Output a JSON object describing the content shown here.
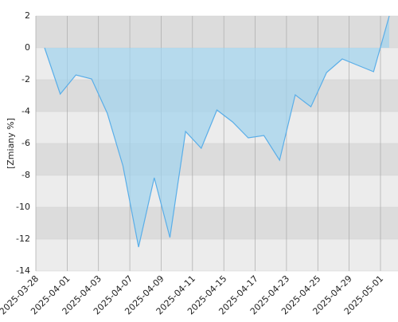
{
  "chart_data": {
    "type": "area",
    "y_label": "[Zmiany %]",
    "categories": [
      "2025-03-28",
      null,
      "2025-04-01",
      null,
      "2025-04-03",
      null,
      "2025-04-07",
      null,
      "2025-04-09",
      null,
      "2025-04-11",
      null,
      "2025-04-15",
      null,
      "2025-04-17",
      null,
      "2025-04-23",
      null,
      "2025-04-25",
      null,
      "2025-04-29",
      null,
      "2025-05-01"
    ],
    "values": [
      0,
      -2.9,
      -1.7,
      -1.95,
      -4.1,
      -7.4,
      -12.5,
      -8.15,
      -11.9,
      -5.25,
      -6.3,
      -3.9,
      -4.65,
      -5.65,
      -5.5,
      -7.05,
      -2.95,
      -3.7,
      -1.55,
      -0.7,
      -1.1,
      -1.5,
      2.0
    ],
    "color": "#5aaee8",
    "ylim": [
      -14,
      2
    ],
    "yticks": [
      -14,
      -12,
      -10,
      -8,
      -6,
      -4,
      -2,
      0,
      2
    ],
    "grid": true
  }
}
